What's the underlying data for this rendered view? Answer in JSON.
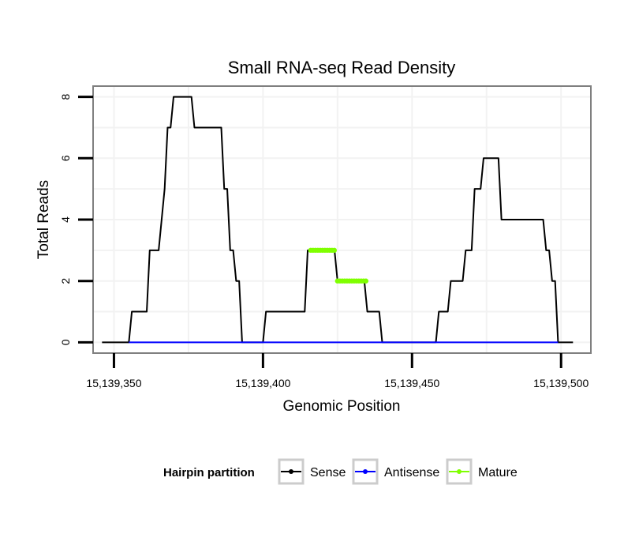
{
  "chart_data": {
    "type": "line",
    "title": "Small RNA-seq Read Density",
    "xlabel": "Genomic Position",
    "ylabel": "Total Reads",
    "xlim": [
      15139343,
      15139510
    ],
    "ylim": [
      -0.35,
      8.35
    ],
    "x_ticks": [
      15139350,
      15139400,
      15139450,
      15139500
    ],
    "x_tick_labels": [
      "15,139,350",
      "15,139,400",
      "15,139,450",
      "15,139,500"
    ],
    "y_ticks": [
      0,
      2,
      4,
      6,
      8
    ],
    "y_tick_labels": [
      "0",
      "2",
      "4",
      "6",
      "8"
    ],
    "grid": true,
    "legend": {
      "title": "Hairpin partition",
      "position": "bottom",
      "entries": [
        {
          "label": "Sense",
          "color": "#000000"
        },
        {
          "label": "Antisense",
          "color": "#0000ff"
        },
        {
          "label": "Mature",
          "color": "#7fff00"
        }
      ]
    },
    "series": [
      {
        "name": "Sense",
        "color": "#000000",
        "x": [
          15139346,
          15139355,
          15139356,
          15139361,
          15139362,
          15139365,
          15139366,
          15139367,
          15139368,
          15139369,
          15139370,
          15139376,
          15139377,
          15139386,
          15139387,
          15139388,
          15139389,
          15139390,
          15139391,
          15139392,
          15139393,
          15139395,
          15139396,
          15139400,
          15139401,
          15139414,
          15139415,
          15139424,
          15139425,
          15139434,
          15139435,
          15139439,
          15139440,
          15139458,
          15139459,
          15139462,
          15139463,
          15139467,
          15139468,
          15139470,
          15139471,
          15139473,
          15139474,
          15139479,
          15139480,
          15139484,
          15139485,
          15139494,
          15139495,
          15139496,
          15139497,
          15139498,
          15139499,
          15139504
        ],
        "y": [
          0,
          0,
          1,
          1,
          3,
          3,
          4,
          5,
          7,
          7,
          8,
          8,
          7,
          7,
          5,
          5,
          3,
          3,
          2,
          2,
          0,
          0,
          0,
          0,
          1,
          1,
          3,
          3,
          2,
          2,
          1,
          1,
          0,
          0,
          1,
          1,
          2,
          2,
          3,
          3,
          5,
          5,
          6,
          6,
          4,
          4,
          4,
          4,
          3,
          3,
          2,
          2,
          0,
          0
        ]
      },
      {
        "name": "Antisense",
        "color": "#0000ff",
        "x": [
          15139355,
          15139499
        ],
        "y": [
          0,
          0
        ]
      },
      {
        "name": "Mature",
        "color": "#7fff00",
        "segments": [
          {
            "x": [
              15139416,
              15139424
            ],
            "y": [
              3,
              3
            ]
          },
          {
            "x": [
              15139425,
              15139435
            ],
            "y": [
              2,
              2
            ]
          }
        ]
      }
    ]
  }
}
